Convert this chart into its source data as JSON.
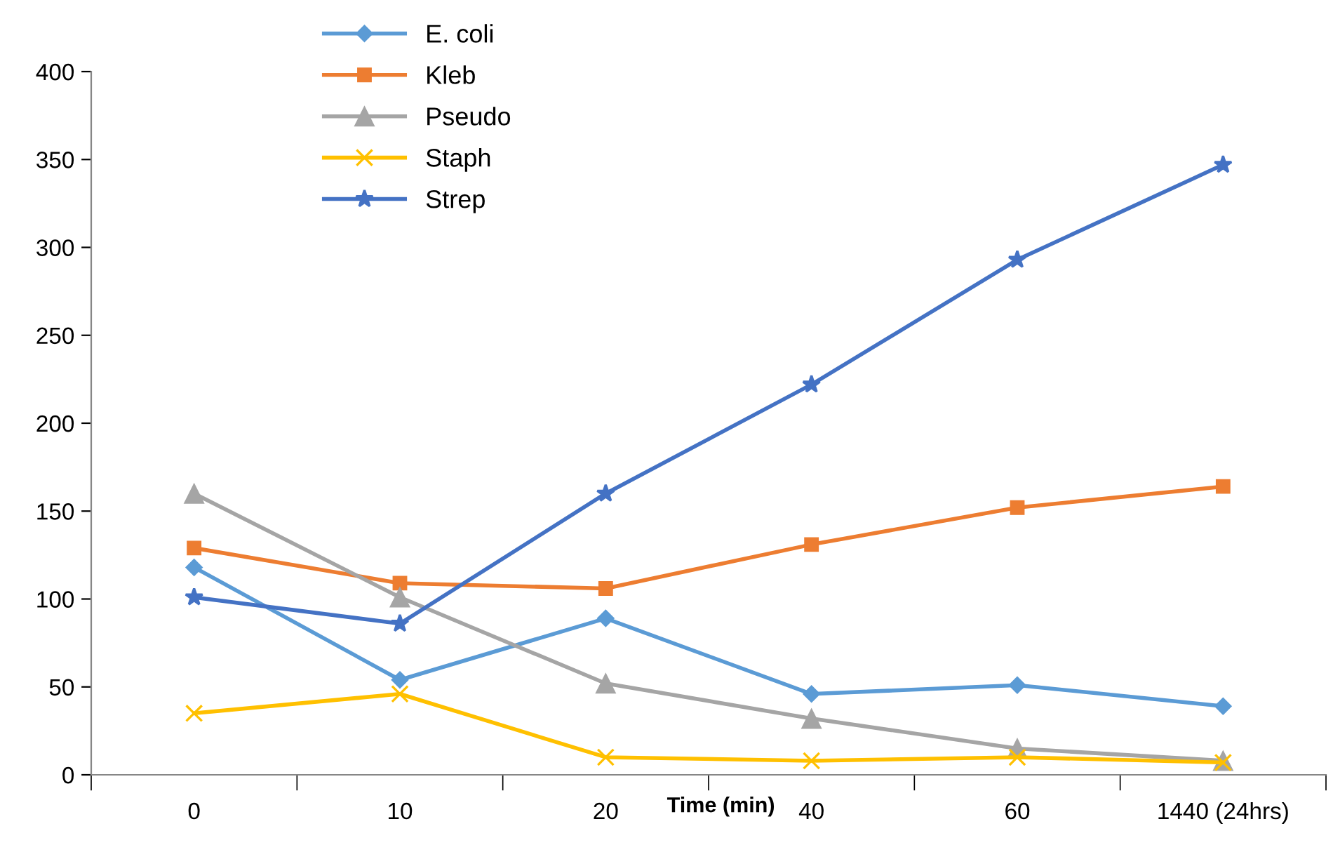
{
  "chart_data": {
    "type": "line",
    "xlabel": "Time (min)",
    "categories": [
      "0",
      "10",
      "20",
      "40",
      "60",
      "1440 (24hrs)"
    ],
    "ylim": [
      0,
      400
    ],
    "yticks": [
      0,
      50,
      100,
      150,
      200,
      250,
      300,
      350,
      400
    ],
    "grid": false,
    "legend": "top left",
    "line_style": "solid",
    "series": [
      {
        "name": "E. coli",
        "color": "#5b9bd5",
        "marker": "diamond",
        "values": [
          118,
          54,
          89,
          46,
          51,
          39
        ]
      },
      {
        "name": "Kleb",
        "color": "#ed7d31",
        "marker": "square",
        "values": [
          129,
          109,
          106,
          131,
          152,
          164
        ]
      },
      {
        "name": "Pseudo",
        "color": "#a5a5a5",
        "marker": "triangle",
        "values": [
          160,
          101,
          52,
          32,
          15,
          8
        ]
      },
      {
        "name": "Staph",
        "color": "#ffc000",
        "marker": "cross",
        "values": [
          35,
          46,
          10,
          8,
          10,
          7
        ]
      },
      {
        "name": "Strep",
        "color": "#4472c4",
        "marker": "star",
        "values": [
          101,
          86,
          160,
          222,
          293,
          347
        ]
      }
    ]
  }
}
